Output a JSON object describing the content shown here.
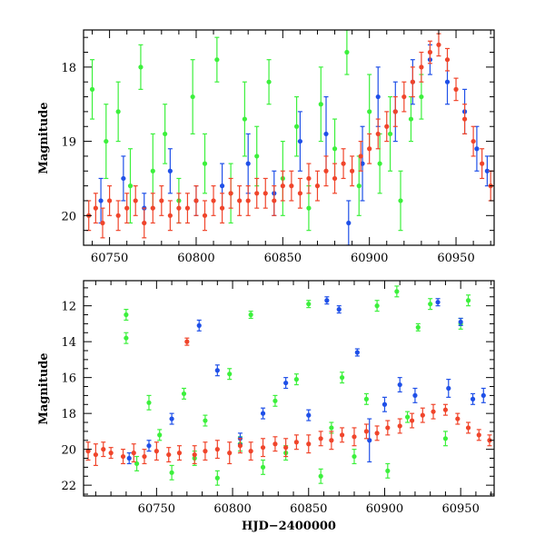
{
  "figure": {
    "xlabel": "HJD−2400000",
    "colors": {
      "green": "#3cf03c",
      "red": "#f0452b",
      "blue": "#1f50e8"
    }
  },
  "chart_data": [
    {
      "type": "scatter",
      "panel": "top",
      "title": "",
      "xlabel": "",
      "ylabel": "Magnitude",
      "xlim": [
        60735,
        60972
      ],
      "ylim": [
        20.4,
        17.5
      ],
      "y_inverted": true,
      "xticks": [
        60750,
        60800,
        60850,
        60900,
        60950
      ],
      "yticks": [
        18,
        19,
        20
      ],
      "xtick_labels": [
        "60750",
        "60800",
        "60850",
        "60900",
        "60950"
      ],
      "ytick_labels": [
        "18",
        "19",
        "20"
      ],
      "series": [
        {
          "name": "green",
          "color": "green",
          "x": [
            60740,
            60748,
            60755,
            60762,
            60768,
            60775,
            60782,
            60790,
            60798,
            60805,
            60812,
            60820,
            60828,
            60835,
            60842,
            60850,
            60858,
            60865,
            60872,
            60880,
            60887,
            60894,
            60900,
            60906,
            60912,
            60918,
            60924,
            60930
          ],
          "y": [
            18.3,
            19.0,
            18.6,
            19.6,
            18.0,
            19.4,
            18.9,
            19.8,
            18.4,
            19.3,
            17.9,
            19.7,
            18.7,
            19.2,
            18.2,
            19.5,
            18.8,
            19.9,
            18.5,
            19.1,
            17.8,
            19.6,
            18.6,
            19.3,
            18.9,
            19.8,
            18.7,
            18.4
          ],
          "err": [
            0.4,
            0.5,
            0.4,
            0.5,
            0.3,
            0.5,
            0.4,
            0.3,
            0.5,
            0.4,
            0.3,
            0.4,
            0.5,
            0.4,
            0.3,
            0.5,
            0.4,
            0.3,
            0.5,
            0.4,
            0.3,
            0.4,
            0.5,
            0.4,
            0.5,
            0.4,
            0.3,
            0.3
          ]
        },
        {
          "name": "blue",
          "color": "blue",
          "x": [
            60745,
            60758,
            60770,
            60785,
            60800,
            60815,
            60830,
            60845,
            60860,
            60875,
            60888,
            60896,
            60905,
            60915,
            60925,
            60935,
            60945,
            60955,
            60962,
            60968
          ],
          "y": [
            19.8,
            19.5,
            19.9,
            19.4,
            19.8,
            19.6,
            19.3,
            19.7,
            19.0,
            18.9,
            20.1,
            19.3,
            18.4,
            18.6,
            18.2,
            17.9,
            18.2,
            18.6,
            19.1,
            19.4
          ],
          "err": [
            0.3,
            0.3,
            0.2,
            0.3,
            0.2,
            0.3,
            0.4,
            0.3,
            0.4,
            0.5,
            0.3,
            0.5,
            0.4,
            0.4,
            0.3,
            0.2,
            0.3,
            0.3,
            0.3,
            0.2
          ]
        },
        {
          "name": "red",
          "color": "red",
          "x": [
            60738,
            60742,
            60746,
            60750,
            60755,
            60760,
            60765,
            60770,
            60775,
            60780,
            60785,
            60790,
            60795,
            60800,
            60805,
            60810,
            60815,
            60820,
            60825,
            60830,
            60835,
            60840,
            60845,
            60850,
            60855,
            60860,
            60865,
            60870,
            60875,
            60880,
            60885,
            60890,
            60895,
            60900,
            60905,
            60910,
            60915,
            60920,
            60925,
            60930,
            60935,
            60940,
            60945,
            60950,
            60955,
            60960,
            60965,
            60970
          ],
          "y": [
            20.0,
            19.9,
            20.1,
            19.8,
            20.0,
            19.9,
            19.8,
            20.1,
            19.9,
            19.8,
            20.0,
            19.9,
            19.9,
            19.8,
            20.0,
            19.8,
            19.9,
            19.7,
            19.8,
            19.8,
            19.7,
            19.7,
            19.8,
            19.6,
            19.6,
            19.7,
            19.5,
            19.6,
            19.4,
            19.5,
            19.3,
            19.4,
            19.2,
            19.1,
            18.9,
            18.8,
            18.6,
            18.4,
            18.2,
            18.0,
            17.8,
            17.7,
            17.9,
            18.3,
            18.7,
            19.0,
            19.3,
            19.6
          ],
          "err": [
            0.2,
            0.2,
            0.2,
            0.2,
            0.2,
            0.2,
            0.2,
            0.2,
            0.2,
            0.2,
            0.2,
            0.2,
            0.2,
            0.2,
            0.2,
            0.2,
            0.2,
            0.2,
            0.2,
            0.2,
            0.2,
            0.2,
            0.2,
            0.2,
            0.2,
            0.2,
            0.2,
            0.2,
            0.2,
            0.2,
            0.2,
            0.2,
            0.2,
            0.2,
            0.2,
            0.2,
            0.2,
            0.2,
            0.2,
            0.2,
            0.15,
            0.15,
            0.15,
            0.15,
            0.2,
            0.2,
            0.2,
            0.2
          ]
        }
      ]
    },
    {
      "type": "scatter",
      "panel": "bottom",
      "title": "",
      "xlabel": "HJD−2400000",
      "ylabel": "Magnitude",
      "xlim": [
        60702,
        60972
      ],
      "ylim": [
        22.6,
        10.6
      ],
      "y_inverted": true,
      "xticks": [
        60750,
        60800,
        60850,
        60900,
        60950
      ],
      "yticks": [
        12,
        14,
        16,
        18,
        20,
        22
      ],
      "xtick_labels": [
        "60750",
        "60800",
        "60850",
        "60900",
        "60950"
      ],
      "ytick_labels": [
        "12",
        "14",
        "16",
        "18",
        "20",
        "22"
      ],
      "series": [
        {
          "name": "green",
          "color": "green",
          "x": [
            60730,
            60730,
            60737,
            60745,
            60752,
            60760,
            60768,
            60775,
            60782,
            60790,
            60798,
            60805,
            60812,
            60820,
            60828,
            60835,
            60842,
            60850,
            60858,
            60865,
            60872,
            60880,
            60888,
            60895,
            60902,
            60908,
            60915,
            60922,
            60930,
            60940,
            60950,
            60955
          ],
          "y": [
            12.5,
            13.8,
            20.8,
            17.4,
            19.2,
            21.3,
            16.9,
            20.5,
            18.4,
            21.6,
            15.8,
            19.7,
            12.5,
            21.0,
            17.3,
            20.2,
            16.1,
            11.9,
            21.5,
            18.8,
            16.0,
            20.4,
            17.2,
            12.0,
            21.2,
            11.2,
            18.2,
            13.2,
            11.9,
            19.4,
            13.0,
            11.7
          ],
          "err": [
            0.3,
            0.3,
            0.4,
            0.4,
            0.3,
            0.4,
            0.3,
            0.4,
            0.3,
            0.4,
            0.3,
            0.4,
            0.2,
            0.4,
            0.3,
            0.4,
            0.3,
            0.2,
            0.4,
            0.3,
            0.3,
            0.4,
            0.3,
            0.3,
            0.4,
            0.3,
            0.3,
            0.2,
            0.3,
            0.4,
            0.3,
            0.3
          ]
        },
        {
          "name": "blue",
          "color": "blue",
          "x": [
            60732,
            60745,
            60760,
            60778,
            60790,
            60805,
            60820,
            60835,
            60850,
            60862,
            60870,
            60882,
            60890,
            60900,
            60910,
            60920,
            60935,
            60942,
            60950,
            60958,
            60965
          ],
          "y": [
            20.5,
            19.8,
            18.3,
            13.1,
            15.6,
            19.4,
            18.0,
            16.3,
            18.1,
            11.7,
            12.2,
            14.6,
            19.5,
            17.5,
            16.4,
            17.0,
            11.8,
            16.6,
            12.9,
            17.2,
            17.0
          ],
          "err": [
            0.3,
            0.3,
            0.3,
            0.3,
            0.3,
            0.3,
            0.3,
            0.3,
            0.3,
            0.2,
            0.2,
            0.2,
            1.2,
            0.4,
            0.4,
            0.4,
            0.2,
            0.5,
            0.2,
            0.3,
            0.4
          ]
        },
        {
          "name": "red",
          "color": "red",
          "x": [
            60705,
            60710,
            60715,
            60720,
            60728,
            60735,
            60742,
            60750,
            60758,
            60765,
            60770,
            60775,
            60782,
            60790,
            60798,
            60805,
            60812,
            60820,
            60828,
            60835,
            60842,
            60850,
            60858,
            60865,
            60872,
            60880,
            60888,
            60895,
            60902,
            60910,
            60918,
            60925,
            60932,
            60940,
            60948,
            60955,
            60962,
            60969
          ],
          "y": [
            20.1,
            20.3,
            20.0,
            20.2,
            20.4,
            20.2,
            20.4,
            20.1,
            20.3,
            20.2,
            14.0,
            20.3,
            20.1,
            20.0,
            20.2,
            19.8,
            20.1,
            19.9,
            19.7,
            19.9,
            19.6,
            19.7,
            19.4,
            19.5,
            19.2,
            19.3,
            19.0,
            19.1,
            18.8,
            18.7,
            18.4,
            18.1,
            17.9,
            17.8,
            18.3,
            18.8,
            19.2,
            19.5
          ],
          "err": [
            0.5,
            0.6,
            0.4,
            0.3,
            0.4,
            0.5,
            0.4,
            0.5,
            0.4,
            0.4,
            0.2,
            0.5,
            0.5,
            0.5,
            0.6,
            0.4,
            0.5,
            0.5,
            0.4,
            0.5,
            0.4,
            0.5,
            0.4,
            0.5,
            0.4,
            0.5,
            0.4,
            0.4,
            0.4,
            0.4,
            0.4,
            0.4,
            0.4,
            0.3,
            0.3,
            0.3,
            0.3,
            0.3
          ]
        }
      ]
    }
  ]
}
